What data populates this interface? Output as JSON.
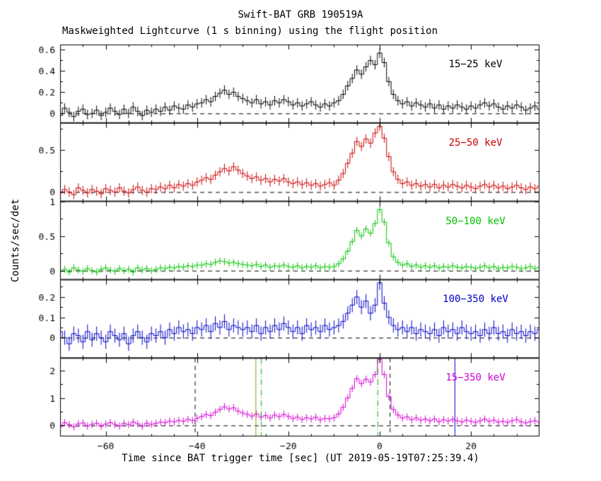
{
  "chart_data": {
    "type": "line",
    "subtype": "step-histogram-with-error-bars",
    "title": "Swift-BAT GRB 190519A",
    "subtitle": "Maskweighted Lightcurve (1 s binning) using the flight position",
    "xlabel": "Time since BAT trigger time [sec] (UT 2019-05-19T07:25:39.4)",
    "ylabel": "Counts/sec/det",
    "xlim": [
      -70,
      35
    ],
    "time": {
      "start": -70,
      "step": 1,
      "n": 106
    },
    "xticks": [
      {
        "v": -60,
        "label": "−60"
      },
      {
        "v": -40,
        "label": "−40"
      },
      {
        "v": -20,
        "label": "−20"
      },
      {
        "v": 0,
        "label": "0"
      },
      {
        "v": 20,
        "label": "20"
      }
    ],
    "xminor_step": 5,
    "grid": false,
    "panels": [
      {
        "label": "15−25 keV",
        "color": "#000000",
        "ylim": [
          -0.09,
          0.65
        ],
        "yticks": [
          {
            "v": 0,
            "label": "0"
          },
          {
            "v": 0.2,
            "label": "0.2"
          },
          {
            "v": 0.4,
            "label": "0.4"
          },
          {
            "v": 0.6,
            "label": "0.6"
          }
        ],
        "yminor": [
          0.1,
          0.3,
          0.5
        ],
        "err": 0.045,
        "values": [
          -0.02,
          0.05,
          0.01,
          -0.03,
          0.02,
          0.04,
          -0.01,
          0,
          0.03,
          -0.02,
          0.01,
          0.05,
          0.02,
          -0.01,
          0.04,
          0,
          0.06,
          0.02,
          -0.02,
          0.03,
          0.01,
          0.04,
          0.02,
          0.06,
          0.03,
          0.07,
          0.05,
          0.04,
          0.08,
          0.06,
          0.09,
          0.1,
          0.13,
          0.11,
          0.16,
          0.19,
          0.22,
          0.18,
          0.2,
          0.16,
          0.14,
          0.12,
          0.1,
          0.13,
          0.09,
          0.11,
          0.08,
          0.12,
          0.1,
          0.13,
          0.11,
          0.08,
          0.1,
          0.07,
          0.09,
          0.11,
          0.08,
          0.06,
          0.09,
          0.07,
          0.1,
          0.12,
          0.18,
          0.26,
          0.33,
          0.41,
          0.37,
          0.44,
          0.5,
          0.46,
          0.57,
          0.48,
          0.3,
          0.18,
          0.12,
          0.09,
          0.11,
          0.07,
          0.1,
          0.08,
          0.06,
          0.09,
          0.05,
          0.08,
          0.04,
          0.07,
          0.05,
          0.08,
          0.06,
          0.04,
          0.07,
          0.05,
          0.08,
          0.1,
          0.07,
          0.09,
          0.06,
          0.04,
          0.07,
          0.05,
          0.08,
          0.06,
          0.03,
          0.05,
          0.07,
          0.04
        ]
      },
      {
        "label": "25−50 keV",
        "color": "#cc0000",
        "ylim": [
          -0.11,
          0.82
        ],
        "yticks": [
          {
            "v": 0,
            "label": "0"
          },
          {
            "v": 0.5,
            "label": "0.5"
          }
        ],
        "yminor": [
          0.25,
          0.75
        ],
        "err": 0.055,
        "values": [
          -0.01,
          0.03,
          0,
          -0.03,
          0.05,
          0.02,
          -0.01,
          0.03,
          0.01,
          -0.02,
          0.04,
          0.02,
          0,
          0.05,
          0.01,
          -0.01,
          0.03,
          0.06,
          0.02,
          0,
          0.04,
          0.03,
          0.06,
          0.04,
          0.08,
          0.05,
          0.09,
          0.07,
          0.1,
          0.08,
          0.12,
          0.14,
          0.17,
          0.15,
          0.2,
          0.24,
          0.28,
          0.25,
          0.3,
          0.26,
          0.22,
          0.19,
          0.16,
          0.18,
          0.14,
          0.16,
          0.12,
          0.15,
          0.13,
          0.16,
          0.12,
          0.1,
          0.12,
          0.09,
          0.11,
          0.08,
          0.1,
          0.07,
          0.09,
          0.11,
          0.08,
          0.14,
          0.22,
          0.34,
          0.46,
          0.6,
          0.54,
          0.63,
          0.58,
          0.7,
          0.78,
          0.64,
          0.42,
          0.24,
          0.15,
          0.1,
          0.12,
          0.08,
          0.1,
          0.07,
          0.09,
          0.06,
          0.09,
          0.05,
          0.08,
          0.06,
          0.09,
          0.07,
          0.05,
          0.08,
          0.06,
          0.04,
          0.07,
          0.09,
          0.06,
          0.08,
          0.05,
          0.07,
          0.04,
          0.06,
          0.08,
          0.05,
          0.03,
          0.06,
          0.04,
          0.07
        ]
      },
      {
        "label": "50−100 keV",
        "color": "#00c300",
        "ylim": [
          -0.13,
          1.0
        ],
        "yticks": [
          {
            "v": 0,
            "label": "0"
          },
          {
            "v": 0.5,
            "label": "0.5"
          },
          {
            "v": 1,
            "label": "1"
          }
        ],
        "yminor": [
          0.25,
          0.75
        ],
        "err": 0.05,
        "values": [
          -0.01,
          0.02,
          -0.02,
          0.04,
          0.01,
          -0.01,
          0.03,
          0,
          -0.02,
          0.02,
          0.04,
          0.01,
          -0.01,
          0.03,
          0,
          0.02,
          -0.02,
          0.04,
          0.01,
          0.03,
          0,
          0.02,
          0.04,
          0.03,
          0.05,
          0.04,
          0.06,
          0.05,
          0.07,
          0.06,
          0.08,
          0.08,
          0.1,
          0.09,
          0.12,
          0.14,
          0.13,
          0.11,
          0.12,
          0.1,
          0.09,
          0.08,
          0.07,
          0.09,
          0.06,
          0.08,
          0.05,
          0.07,
          0.06,
          0.08,
          0.06,
          0.05,
          0.07,
          0.04,
          0.06,
          0.05,
          0.07,
          0.04,
          0.06,
          0.05,
          0.06,
          0.1,
          0.17,
          0.28,
          0.42,
          0.58,
          0.5,
          0.6,
          0.54,
          0.68,
          0.88,
          0.7,
          0.4,
          0.2,
          0.12,
          0.08,
          0.1,
          0.06,
          0.08,
          0.05,
          0.07,
          0.05,
          0.07,
          0.04,
          0.06,
          0.05,
          0.07,
          0.05,
          0.04,
          0.06,
          0.05,
          0.03,
          0.05,
          0.07,
          0.04,
          0.06,
          0.03,
          0.05,
          0.04,
          0.06,
          0.05,
          0.03,
          0.04,
          0.06,
          0.03,
          0.05
        ]
      },
      {
        "label": "100−350 keV",
        "color": "#0000c8",
        "ylim": [
          -0.1,
          0.285
        ],
        "yticks": [
          {
            "v": 0,
            "label": "0"
          },
          {
            "v": 0.1,
            "label": "0.1"
          },
          {
            "v": 0.2,
            "label": "0.2"
          }
        ],
        "yminor": [
          0.05,
          0.15,
          0.25
        ],
        "err": 0.035,
        "values": [
          0.03,
          0,
          -0.03,
          0.02,
          0.01,
          -0.02,
          0.03,
          -0.01,
          0.02,
          0,
          -0.02,
          0.03,
          0.01,
          -0.01,
          0.02,
          -0.03,
          0.01,
          0.03,
          0,
          -0.02,
          0.02,
          0.01,
          0.03,
          0,
          0.04,
          0.02,
          0.05,
          0.03,
          0.04,
          0.02,
          0.05,
          0.04,
          0.06,
          0.03,
          0.07,
          0.05,
          0.08,
          0.04,
          0.06,
          0.05,
          0.04,
          0.05,
          0.03,
          0.06,
          0.02,
          0.05,
          0.03,
          0.06,
          0.04,
          0.07,
          0.05,
          0.03,
          0.05,
          0.02,
          0.06,
          0.04,
          0.05,
          0.03,
          0.06,
          0.04,
          0.05,
          0.06,
          0.08,
          0.12,
          0.16,
          0.2,
          0.15,
          0.18,
          0.12,
          0.16,
          0.27,
          0.17,
          0.1,
          0.06,
          0.04,
          0.05,
          0.03,
          0.05,
          0.02,
          0.04,
          0.03,
          0.02,
          0.04,
          0.01,
          0.05,
          0.03,
          0.04,
          0.02,
          0.05,
          0.03,
          0.02,
          0.03,
          0.01,
          0.04,
          0.02,
          0.05,
          0.02,
          0.03,
          0.01,
          0.04,
          0.02,
          0.03,
          0.01,
          0.03,
          0.02,
          0.04
        ]
      },
      {
        "label": "15−350 keV",
        "color": "#d400d4",
        "ylim": [
          -0.4,
          2.45
        ],
        "yticks": [
          {
            "v": 0,
            "label": "0"
          },
          {
            "v": 1,
            "label": "1"
          },
          {
            "v": 2,
            "label": "2"
          }
        ],
        "yminor": [
          0.5,
          1.5
        ],
        "err": 0.13,
        "values": [
          -0.04,
          0.1,
          0.03,
          -0.05,
          0.06,
          0.09,
          -0.02,
          0.04,
          0.08,
          -0.03,
          0.05,
          0.1,
          0.04,
          -0.02,
          0.08,
          0.03,
          0.12,
          0.06,
          -0.03,
          0.08,
          0.04,
          0.08,
          0.12,
          0.1,
          0.16,
          0.13,
          0.18,
          0.15,
          0.22,
          0.18,
          0.26,
          0.32,
          0.4,
          0.36,
          0.48,
          0.58,
          0.68,
          0.6,
          0.64,
          0.52,
          0.45,
          0.4,
          0.34,
          0.42,
          0.3,
          0.36,
          0.27,
          0.38,
          0.32,
          0.4,
          0.33,
          0.25,
          0.3,
          0.22,
          0.28,
          0.24,
          0.3,
          0.2,
          0.26,
          0.24,
          0.28,
          0.42,
          0.66,
          1.0,
          1.35,
          1.7,
          1.52,
          1.68,
          1.58,
          1.85,
          2.4,
          1.85,
          1.05,
          0.58,
          0.38,
          0.27,
          0.31,
          0.21,
          0.27,
          0.19,
          0.23,
          0.17,
          0.23,
          0.14,
          0.21,
          0.16,
          0.22,
          0.17,
          0.13,
          0.19,
          0.15,
          0.11,
          0.17,
          0.23,
          0.15,
          0.19,
          0.12,
          0.15,
          0.11,
          0.17,
          0.21,
          0.13,
          0.09,
          0.14,
          0.17,
          0.11
        ]
      }
    ],
    "vlines": {
      "panel": 4,
      "lines": [
        {
          "t": -40.5,
          "color": "#000000",
          "style": "dashed"
        },
        {
          "t": -27.2,
          "color": "#9a9a00",
          "style": "solid"
        },
        {
          "t": -26.0,
          "color": "#00aa00",
          "style": "dashdot"
        },
        {
          "t": -0.5,
          "color": "#00aa00",
          "style": "dashdot"
        },
        {
          "t": 2.2,
          "color": "#000000",
          "style": "dashed"
        },
        {
          "t": 16.4,
          "color": "#0000cc",
          "style": "solid"
        }
      ]
    }
  }
}
